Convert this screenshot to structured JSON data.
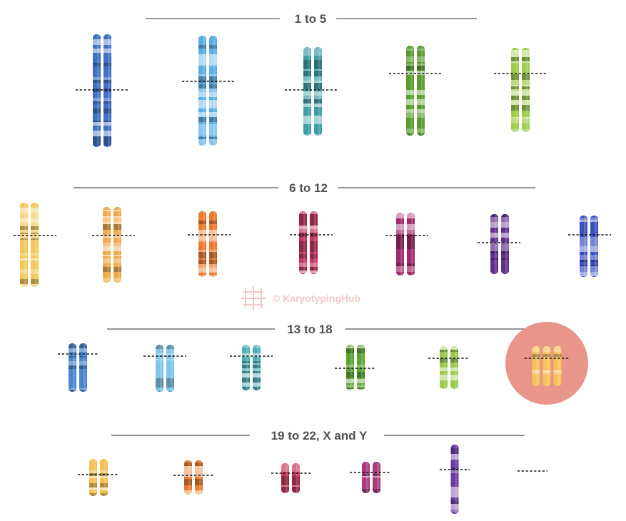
{
  "figure": {
    "groups": [
      {
        "id": "g1",
        "label": "1 to 5"
      },
      {
        "id": "g2",
        "label": "6 to 12"
      },
      {
        "id": "g3",
        "label": "13 to 18"
      },
      {
        "id": "g4",
        "label": "19 to 22, X and Y"
      }
    ],
    "watermark": "© KaryotypingHub",
    "highlight": "chromosome 18 trisomy (three copies)"
  },
  "colors": {
    "title_text": "#505050",
    "rule_line": "#555555",
    "centromere_line": "#111111",
    "highlight_circle": "#e8958a",
    "watermark": "#f2c9c9",
    "chromosome_palette": {
      "chr1": "#3f6fc6",
      "chr2": "#5aaee4",
      "chr3": "#3e9ea6",
      "chr4": "#5b9a2c",
      "chr5": "#9ccc4a",
      "chr6": "#f3c75a",
      "chr7": "#f0a84a",
      "chr8": "#ec7a2f",
      "chr9": "#c8345f",
      "chr10": "#a02a6a",
      "chr11": "#5e2f8e",
      "chr12": "#3a4fc0",
      "chr13": "#4a86d0",
      "chr14": "#7ec6e8",
      "chr15": "#4eb0b4",
      "chr16": "#5aa432",
      "chr17": "#9cc84e",
      "chr18": "#f6c35a",
      "chr19": "#f5c050",
      "chr20": "#ec7a2f",
      "chr21": "#c8345f",
      "chr22": "#a83a7e",
      "chrX": "#6a3aa0",
      "chrY": "none"
    }
  }
}
